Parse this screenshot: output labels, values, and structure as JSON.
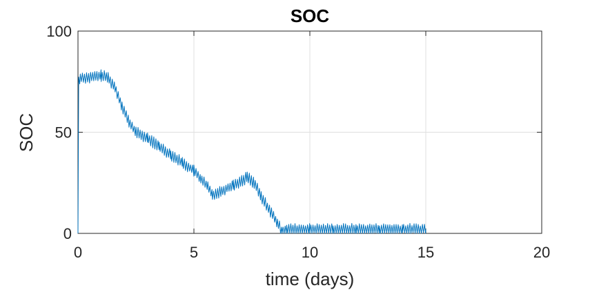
{
  "chart_data": {
    "type": "line",
    "title": "SOC",
    "xlabel": "time (days)",
    "ylabel": "SOC",
    "xlim": [
      0,
      20
    ],
    "ylim": [
      0,
      100
    ],
    "xticks": [
      0,
      5,
      10,
      15,
      20
    ],
    "yticks": [
      0,
      50,
      100
    ],
    "xtick_labels": [
      "0",
      "5",
      "10",
      "15",
      "20"
    ],
    "ytick_labels": [
      "0",
      "50",
      "100"
    ],
    "grid": true,
    "legend": "none",
    "line_color": "#0072bd",
    "series": [
      {
        "x": [
          0,
          0.03,
          0.1,
          0.5,
          1.0,
          1.3,
          1.6,
          1.9,
          2.2,
          2.5,
          3.0,
          3.5,
          4.0,
          4.5,
          5.0,
          5.3,
          5.6,
          5.8,
          6.2,
          6.7,
          7.1,
          7.3,
          7.6,
          7.9,
          8.3,
          8.6,
          8.8,
          9.0,
          10.0,
          11.0,
          12.0,
          13.0,
          14.0,
          15.0
        ],
        "y": [
          0,
          75,
          77,
          77,
          78,
          77,
          72,
          63,
          55,
          50,
          47,
          43,
          39,
          35,
          31,
          27,
          23,
          19,
          21,
          24,
          26,
          28,
          25,
          18,
          11,
          5,
          1,
          2,
          2,
          2,
          2,
          2,
          2,
          2
        ],
        "oscillation_amplitude": 3
      }
    ]
  }
}
